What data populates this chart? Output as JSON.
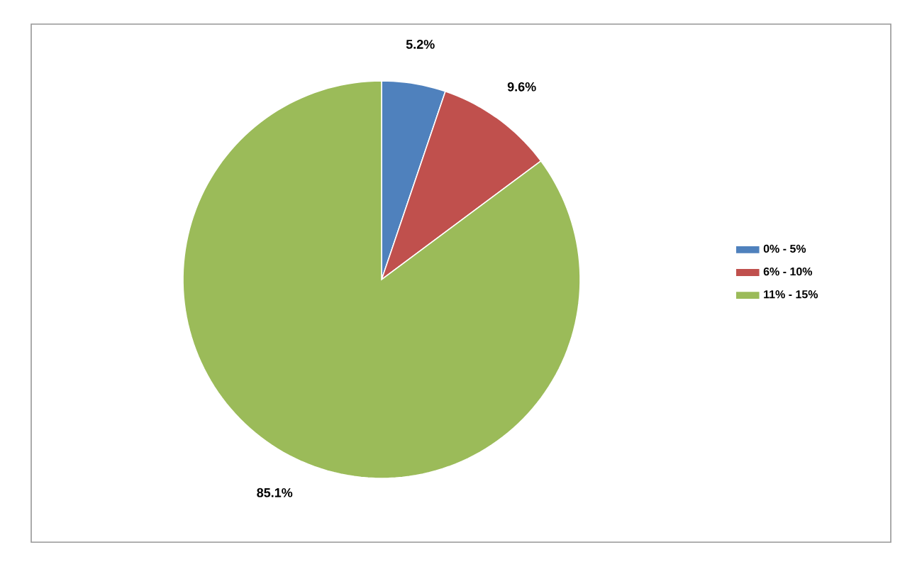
{
  "chart_data": {
    "type": "pie",
    "categories": [
      "0% - 5%",
      "6% - 10%",
      "11% - 15%"
    ],
    "values": [
      5.2,
      9.6,
      85.1
    ],
    "colors": [
      "#4f81bd",
      "#c0504d",
      "#9bbb59"
    ],
    "value_labels": [
      "5.2%",
      "9.6%",
      "85.1%"
    ],
    "legend": "right"
  }
}
